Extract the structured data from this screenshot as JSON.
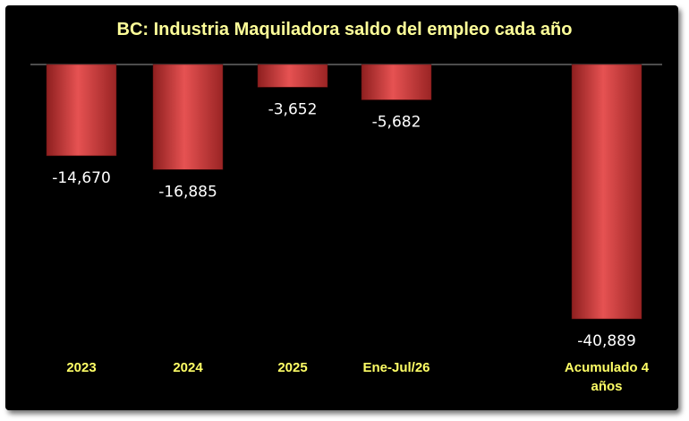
{
  "chart_data": {
    "type": "bar",
    "title": "BC: Industria Maquiladora saldo del empleo cada año",
    "categories": [
      [
        "2023"
      ],
      [
        "2024"
      ],
      [
        "2025"
      ],
      [
        "Ene-Jul/26"
      ],
      [
        "Acumulado 4",
        "años"
      ]
    ],
    "values": [
      -14670,
      -16885,
      -3652,
      -5682,
      -40889
    ],
    "data_labels": [
      "-14,670",
      "-16,885",
      "-3,652",
      "-5,682",
      "-40,889"
    ],
    "ylim": [
      -40889,
      0
    ],
    "grid": false,
    "legend": "none",
    "colors": {
      "bar": "#c0392b",
      "bar_light": "#e55555",
      "background": "#000000",
      "title": "#ffff99",
      "category": "#ffff66",
      "label": "#ffffff"
    }
  }
}
